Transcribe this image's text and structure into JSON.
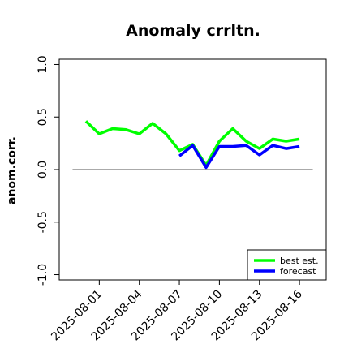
{
  "chart_data": {
    "type": "line",
    "title": "Anomaly crrltn.",
    "ylabel": "anom.corr.",
    "xlabel": "",
    "ylim": [
      -1.05,
      1.05
    ],
    "yticks": [
      -1.0,
      -0.5,
      0.0,
      0.5,
      1.0
    ],
    "ytick_labels": [
      "-1.0",
      "-0.5",
      "0.0",
      "0.5",
      "1.0"
    ],
    "xlim": [
      "2025-07-29",
      "2025-08-18"
    ],
    "x_tick_labels": [
      "2025-08-01",
      "2025-08-04",
      "2025-08-07",
      "2025-08-10",
      "2025-08-13",
      "2025-08-16"
    ],
    "highlight_tick": "2025-08-07",
    "highlight_color": "#228b22",
    "reference_line": 0.0,
    "grid": false,
    "legend_position": "bottom-right",
    "series": [
      {
        "name": "best est.",
        "color": "#00ff00",
        "x": [
          "2025-07-31",
          "2025-08-01",
          "2025-08-02",
          "2025-08-03",
          "2025-08-04",
          "2025-08-05",
          "2025-08-06",
          "2025-08-07",
          "2025-08-08",
          "2025-08-09",
          "2025-08-10",
          "2025-08-11",
          "2025-08-12",
          "2025-08-13",
          "2025-08-14",
          "2025-08-15",
          "2025-08-16"
        ],
        "values": [
          0.46,
          0.34,
          0.39,
          0.38,
          0.34,
          0.44,
          0.34,
          0.18,
          0.24,
          0.04,
          0.27,
          0.39,
          0.27,
          0.2,
          0.29,
          0.27,
          0.29
        ]
      },
      {
        "name": "forecast",
        "color": "#0000ff",
        "x": [
          "2025-08-07",
          "2025-08-08",
          "2025-08-09",
          "2025-08-10",
          "2025-08-11",
          "2025-08-12",
          "2025-08-13",
          "2025-08-14",
          "2025-08-15",
          "2025-08-16"
        ],
        "values": [
          0.13,
          0.23,
          0.02,
          0.22,
          0.22,
          0.23,
          0.14,
          0.23,
          0.2,
          0.22
        ]
      }
    ]
  }
}
